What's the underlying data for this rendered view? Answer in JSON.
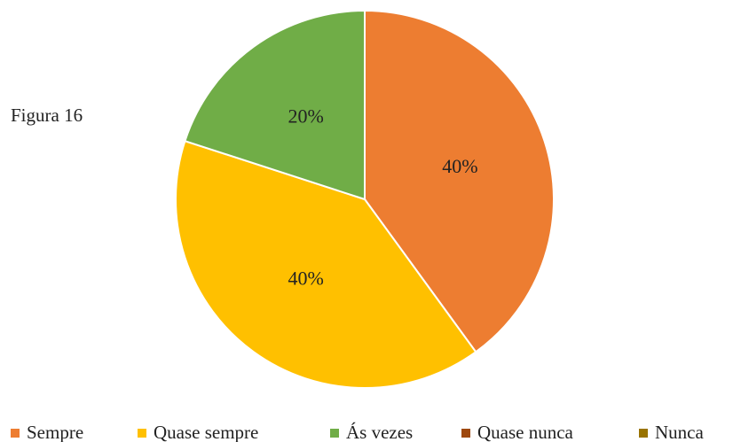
{
  "chart_data": {
    "type": "pie",
    "title": "Figura 16",
    "categories": [
      "Sempre",
      "Quase sempre",
      "Ás vezes",
      "Quase nunca",
      "Nunca"
    ],
    "values": [
      40,
      40,
      20,
      0,
      0
    ],
    "value_labels": [
      "40%",
      "40%",
      "20%",
      null,
      null
    ],
    "colors": [
      "#ED7D31",
      "#FFC000",
      "#70AD47",
      "#9E480E",
      "#997300"
    ],
    "legend": "bottom"
  }
}
